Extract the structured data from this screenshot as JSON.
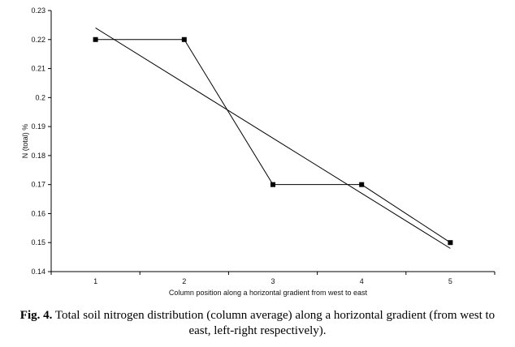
{
  "chart_data": {
    "type": "line",
    "title": "",
    "xlabel": "Column position along a horizontal gradient from west to east",
    "ylabel": "N (total) %",
    "x": [
      1,
      2,
      3,
      4,
      5
    ],
    "series": [
      {
        "values": [
          0.22,
          0.22,
          0.17,
          0.17,
          0.15
        ],
        "markers": true
      },
      {
        "values": [
          0.224,
          0.205,
          0.186,
          0.167,
          0.148
        ],
        "markers": false,
        "style": "linear-trend"
      }
    ],
    "xticks": [
      "1",
      "2",
      "3",
      "4",
      "5"
    ],
    "yticks": [
      "0.14",
      "0.15",
      "0.16",
      "0.17",
      "0.18",
      "0.19",
      "0.2",
      "0.21",
      "0.22",
      "0.23"
    ],
    "ylim": [
      0.14,
      0.23
    ],
    "xlim": [
      0.5,
      5.5
    ],
    "grid": false,
    "legend": "none",
    "colors": {
      "line": "#000000",
      "marker": "#000000"
    }
  },
  "caption": {
    "label": "Fig. 4.",
    "text": " Total soil nitrogen distribution (column average) along a horizontal gradient (from west to east, left-right respectively)."
  }
}
